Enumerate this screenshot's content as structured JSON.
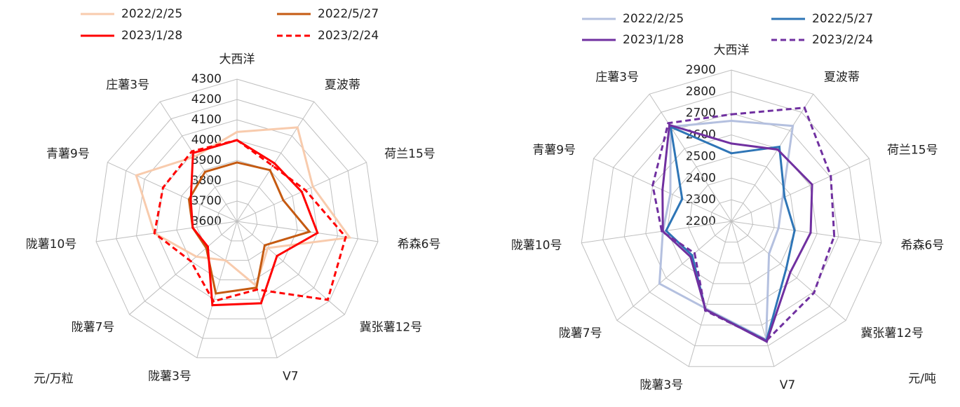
{
  "chart_data": [
    {
      "type": "radar",
      "unit": "元/万粒",
      "categories": [
        "大西洋",
        "夏波蒂",
        "荷兰15号",
        "希森6号",
        "冀张薯12号",
        "V7",
        "陇薯3号",
        "陇薯7号",
        "陇薯10号",
        "青薯9号",
        "庄薯3号"
      ],
      "rlim": [
        3600,
        4300
      ],
      "rticks": [
        3600,
        3700,
        3800,
        3900,
        4000,
        4100,
        4200,
        4300
      ],
      "series": [
        {
          "name": "2022/2/25",
          "color": "#f8cbad",
          "dashed": false,
          "values": [
            4040,
            4150,
            4010,
            4160,
            3800,
            3930,
            3800,
            3865,
            4010,
            4145,
            3980
          ]
        },
        {
          "name": "2022/5/27",
          "color": "#c55a11",
          "dashed": false,
          "values": [
            3890,
            3900,
            3850,
            3960,
            3780,
            3940,
            3970,
            3800,
            3820,
            3860,
            3890
          ]
        },
        {
          "name": "2023/1/28",
          "color": "#ff0000",
          "dashed": false,
          "values": [
            4000,
            3940,
            3950,
            4000,
            3860,
            4020,
            4030,
            3790,
            3820,
            3850,
            4000
          ]
        },
        {
          "name": "2023/2/24",
          "color": "#ff0000",
          "dashed": true,
          "values": [
            4000,
            3925,
            3970,
            4140,
            4190,
            3950,
            4010,
            3900,
            4010,
            4000,
            4010
          ]
        }
      ]
    },
    {
      "type": "radar",
      "unit": "元/吨",
      "categories": [
        "大西洋",
        "夏波蒂",
        "荷兰15号",
        "希森6号",
        "冀张薯12号",
        "V7",
        "陇薯3号",
        "陇薯7号",
        "陇薯10号",
        "青薯9号",
        "庄薯3号"
      ],
      "rlim": [
        2200,
        2900
      ],
      "rticks": [
        2200,
        2300,
        2400,
        2500,
        2600,
        2700,
        2800,
        2900
      ],
      "series": [
        {
          "name": "2022/2/25",
          "color": "#b4c0df",
          "dashed": false,
          "values": [
            2665,
            2725,
            2460,
            2420,
            2430,
            2770,
            2620,
            2640,
            2520,
            2510,
            2720
          ]
        },
        {
          "name": "2022/5/27",
          "color": "#2e75b6",
          "dashed": false,
          "values": [
            2515,
            2610,
            2470,
            2495,
            2535,
            2775,
            2625,
            2440,
            2505,
            2450,
            2720
          ]
        },
        {
          "name": "2023/1/28",
          "color": "#7030a0",
          "dashed": false,
          "values": [
            2560,
            2595,
            2610,
            2570,
            2560,
            2780,
            2625,
            2450,
            2520,
            2550,
            2730
          ]
        },
        {
          "name": "2023/2/24",
          "color": "#7030a0",
          "dashed": true,
          "values": [
            2695,
            2825,
            2705,
            2680,
            2705,
            2775,
            2630,
            2425,
            2525,
            2600,
            2740
          ]
        }
      ]
    }
  ]
}
